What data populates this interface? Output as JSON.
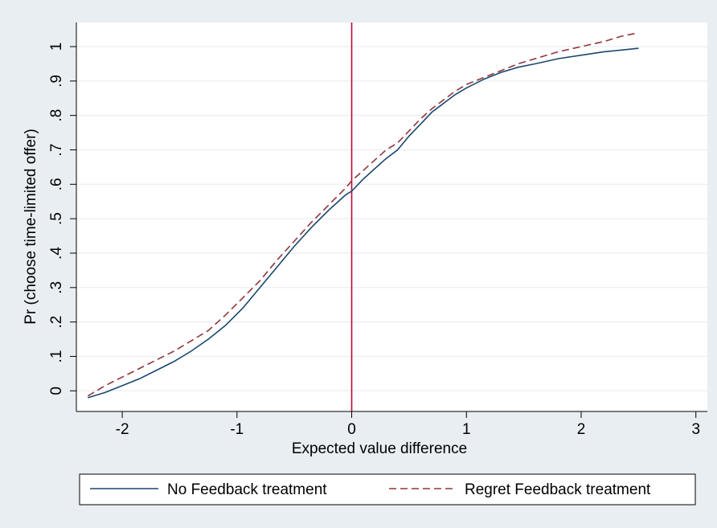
{
  "colors": {
    "background": "#e8eef2",
    "plot_background": "#ffffff",
    "grid": "#e8eef2",
    "series_no_feedback": "#1a476f",
    "series_regret": "#90353b",
    "reference_line": "#c10534"
  },
  "chart_data": {
    "type": "line",
    "title": "",
    "xlabel": "Expected value difference",
    "ylabel": "Pr (choose time-limited offer)",
    "xlim": [
      -2.4,
      3.1
    ],
    "ylim": [
      -0.06,
      1.07
    ],
    "x_ticks": [
      -2,
      -1,
      0,
      1,
      2,
      3
    ],
    "x_tick_labels": [
      "-2",
      "-1",
      "0",
      "1",
      "2",
      "3"
    ],
    "y_ticks": [
      0,
      0.1,
      0.2,
      0.3,
      0.4,
      0.5,
      0.6,
      0.7,
      0.8,
      0.9,
      1
    ],
    "y_tick_labels": [
      "0",
      ".1",
      ".2",
      ".3",
      ".4",
      ".5",
      ".6",
      ".7",
      ".8",
      ".9",
      "1"
    ],
    "grid": true,
    "legend_position": "bottom",
    "reference_line_x": 0,
    "series": [
      {
        "name": "No Feedback treatment",
        "style": "solid",
        "x": [
          -2.3,
          -2.15,
          -2.0,
          -1.85,
          -1.7,
          -1.55,
          -1.4,
          -1.25,
          -1.1,
          -0.95,
          -0.8,
          -0.65,
          -0.5,
          -0.35,
          -0.2,
          -0.05,
          0,
          0.1,
          0.2,
          0.3,
          0.4,
          0.5,
          0.6,
          0.7,
          0.8,
          0.9,
          1.0,
          1.15,
          1.3,
          1.45,
          1.6,
          1.8,
          2.0,
          2.2,
          2.35,
          2.5
        ],
        "y": [
          -0.02,
          -0.005,
          0.015,
          0.035,
          0.06,
          0.085,
          0.115,
          0.15,
          0.19,
          0.24,
          0.3,
          0.36,
          0.42,
          0.475,
          0.525,
          0.57,
          0.58,
          0.615,
          0.645,
          0.675,
          0.7,
          0.74,
          0.775,
          0.81,
          0.835,
          0.86,
          0.88,
          0.905,
          0.925,
          0.94,
          0.95,
          0.965,
          0.975,
          0.985,
          0.99,
          0.995
        ]
      },
      {
        "name": "Regret Feedback treatment",
        "style": "dashed",
        "x": [
          -2.3,
          -2.15,
          -2.0,
          -1.85,
          -1.7,
          -1.55,
          -1.4,
          -1.25,
          -1.1,
          -0.95,
          -0.8,
          -0.65,
          -0.5,
          -0.35,
          -0.2,
          -0.05,
          0,
          0.1,
          0.2,
          0.3,
          0.4,
          0.5,
          0.6,
          0.7,
          0.8,
          0.9,
          1.0,
          1.15,
          1.3,
          1.45,
          1.6,
          1.8,
          2.0,
          2.2,
          2.35,
          2.5
        ],
        "y": [
          -0.015,
          0.015,
          0.04,
          0.065,
          0.09,
          0.115,
          0.145,
          0.175,
          0.22,
          0.27,
          0.32,
          0.38,
          0.435,
          0.49,
          0.54,
          0.59,
          0.61,
          0.64,
          0.67,
          0.7,
          0.72,
          0.755,
          0.79,
          0.82,
          0.845,
          0.87,
          0.89,
          0.91,
          0.93,
          0.95,
          0.965,
          0.985,
          1.0,
          1.015,
          1.03,
          1.04
        ]
      }
    ]
  }
}
